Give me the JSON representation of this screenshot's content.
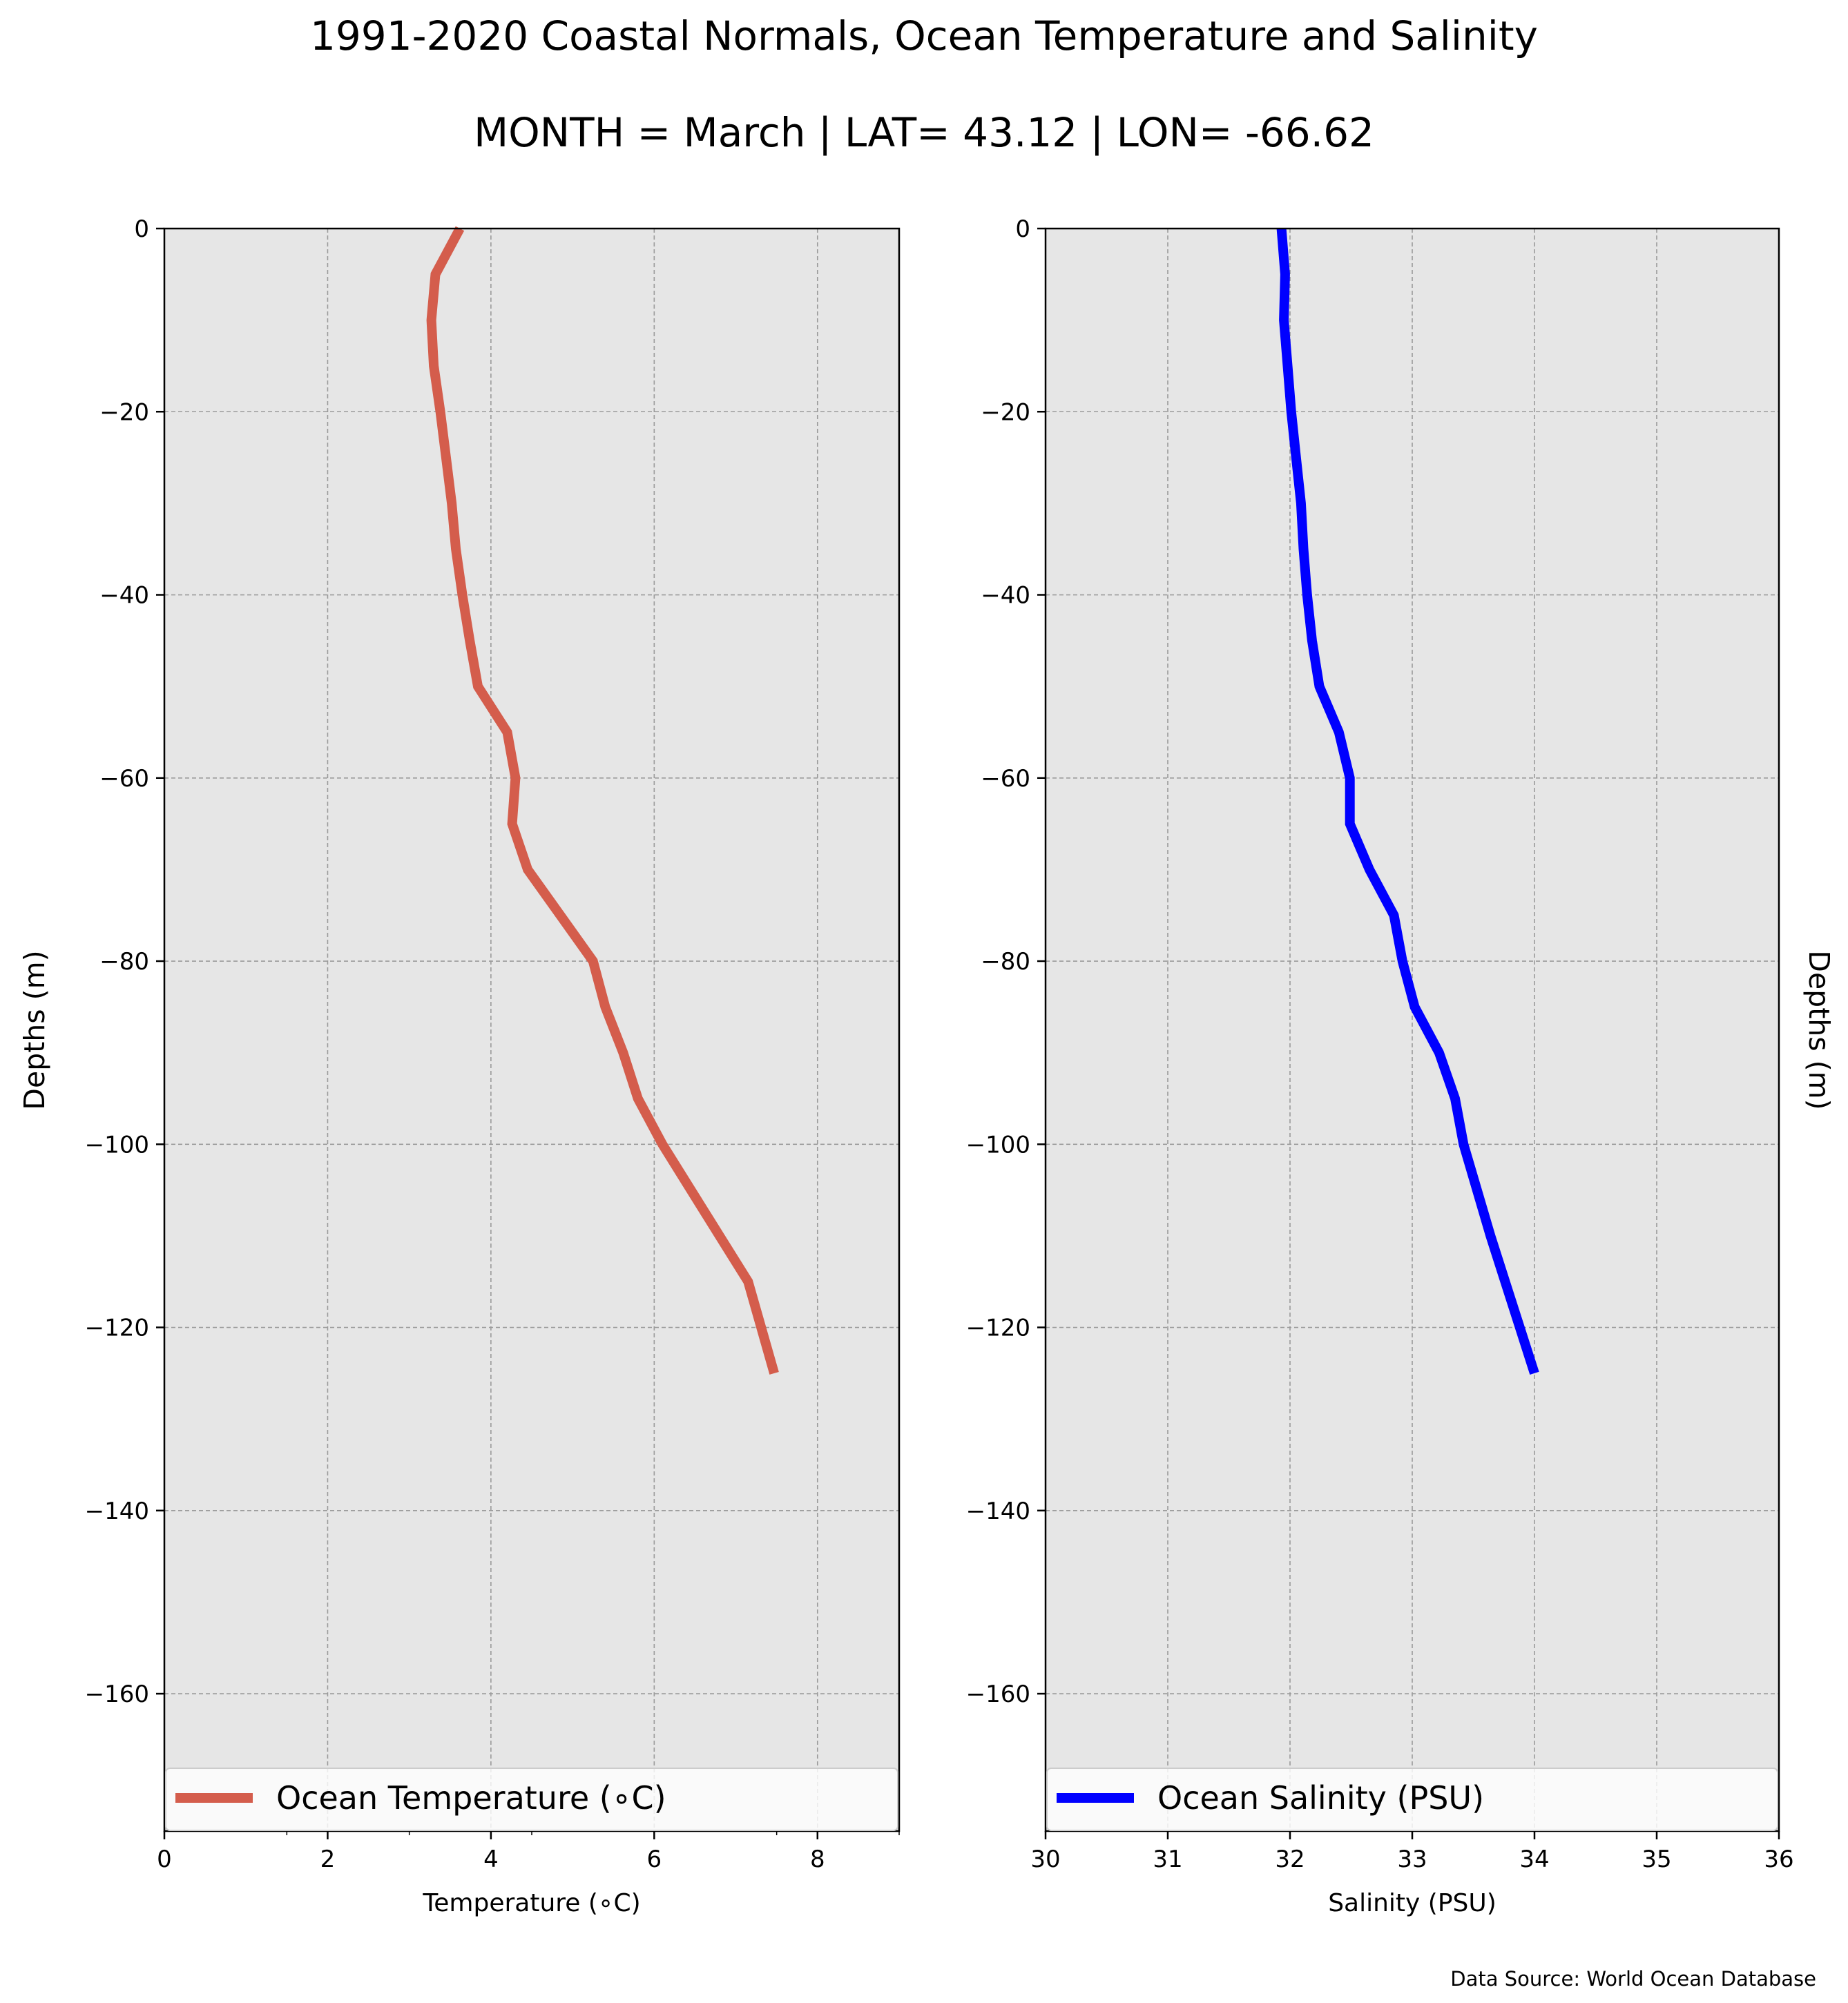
{
  "figure": {
    "title_line1": "1991-2020 Coastal Normals, Ocean Temperature and Salinity",
    "title_line2": "MONTH = March | LAT= 43.12 | LON= -66.62",
    "source": "Data Source: World Ocean Database"
  },
  "chart_data": [
    {
      "type": "line",
      "xlabel": "Temperature (∘C)",
      "ylabel": "Depths (m)",
      "xlim": [
        0,
        9
      ],
      "ylim": [
        -175,
        0
      ],
      "xticks": [
        0,
        2,
        4,
        6,
        8
      ],
      "xtick_labels": [
        "0",
        "2",
        "4",
        "6",
        "8"
      ],
      "yticks": [
        0,
        -20,
        -40,
        -60,
        -80,
        -100,
        -120,
        -140,
        -160
      ],
      "ytick_labels": [
        "0",
        "−20",
        "−40",
        "−60",
        "−80",
        "−100",
        "−120",
        "−140",
        "−160"
      ],
      "grid": true,
      "legend": "bottom",
      "series": [
        {
          "name": "Ocean Temperature (∘C)",
          "color": "#d45d4c",
          "x": [
            3.62,
            3.32,
            3.27,
            3.3,
            3.38,
            3.45,
            3.52,
            3.57,
            3.65,
            3.74,
            3.84,
            4.2,
            4.3,
            4.26,
            4.45,
            4.85,
            5.25,
            5.4,
            5.62,
            5.8,
            6.1,
            6.45,
            6.8,
            7.15,
            7.47
          ],
          "y": [
            0,
            -5,
            -10,
            -15,
            -20,
            -25,
            -30,
            -35,
            -40,
            -45,
            -50,
            -55,
            -60,
            -65,
            -70,
            -75,
            -80,
            -85,
            -90,
            -95,
            -100,
            -105,
            -110,
            -115,
            -125
          ]
        }
      ]
    },
    {
      "type": "line",
      "xlabel": "Salinity (PSU)",
      "ylabel": "Depths (m)",
      "xlim": [
        30,
        36
      ],
      "ylim": [
        -175,
        0
      ],
      "xticks": [
        30,
        31,
        32,
        33,
        34,
        35,
        36
      ],
      "xtick_labels": [
        "30",
        "31",
        "32",
        "33",
        "34",
        "35",
        "36"
      ],
      "yticks": [
        0,
        -20,
        -40,
        -60,
        -80,
        -100,
        -120,
        -140,
        -160
      ],
      "ytick_labels": [
        "0",
        "−20",
        "−40",
        "−60",
        "−80",
        "−100",
        "−120",
        "−140",
        "−160"
      ],
      "grid": true,
      "legend": "bottom",
      "series": [
        {
          "name": "Ocean Salinity (PSU)",
          "color": "#0000ff",
          "x": [
            31.93,
            31.96,
            31.95,
            31.98,
            32.01,
            32.05,
            32.09,
            32.11,
            32.14,
            32.18,
            32.24,
            32.4,
            32.49,
            32.49,
            32.65,
            32.85,
            32.92,
            33.02,
            33.22,
            33.35,
            33.42,
            33.53,
            33.64,
            33.76,
            34.0
          ],
          "y": [
            0,
            -5,
            -10,
            -15,
            -20,
            -25,
            -30,
            -35,
            -40,
            -45,
            -50,
            -55,
            -60,
            -65,
            -70,
            -75,
            -80,
            -85,
            -90,
            -95,
            -100,
            -105,
            -110,
            -115,
            -125
          ]
        }
      ]
    }
  ]
}
